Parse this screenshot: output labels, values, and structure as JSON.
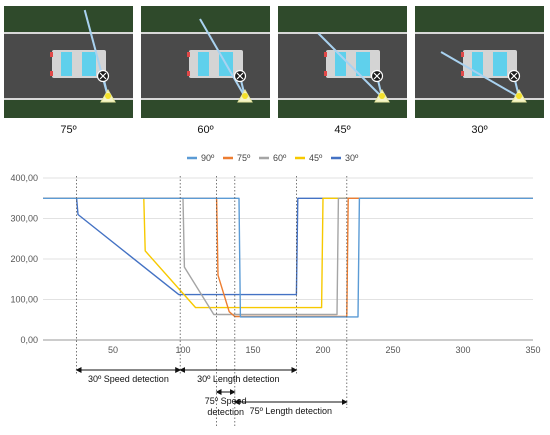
{
  "scenes": [
    {
      "label": "75º",
      "angle": 75
    },
    {
      "label": "60º",
      "angle": 60
    },
    {
      "label": "45º",
      "angle": 45
    },
    {
      "label": "30º",
      "angle": 30
    }
  ],
  "colors": {
    "grass": "#2f4a2b",
    "road": "#4a4a4a",
    "road_edge": "#d8d8d8",
    "car_body": "#d4d4d4",
    "car_glass": "#5fd0ec",
    "car_light": "#e04848",
    "beam": "#a9d2f0",
    "sensor_fill": "#f5f5c8",
    "sensor_dot": "#f3e12a"
  },
  "chart_data": {
    "type": "line",
    "xlim": [
      0,
      350
    ],
    "ylim": [
      0,
      400
    ],
    "x_ticks": [
      "50",
      "100",
      "150",
      "200",
      "250",
      "300",
      "350"
    ],
    "y_ticks": [
      "0,00",
      "100,00",
      "200,00",
      "300,00",
      "400,00"
    ],
    "legend_position": "top",
    "grid": "horizontal",
    "series": [
      {
        "name": "90º",
        "color": "#5b9bd5",
        "points": [
          [
            0,
            350
          ],
          [
            140,
            350
          ],
          [
            141,
            57
          ],
          [
            225,
            57
          ],
          [
            226,
            350
          ],
          [
            350,
            350
          ]
        ]
      },
      {
        "name": "75º",
        "color": "#ed7d31",
        "points": [
          [
            0,
            350
          ],
          [
            124,
            350
          ],
          [
            125,
            160
          ],
          [
            133,
            70
          ],
          [
            137,
            58
          ],
          [
            217,
            58
          ],
          [
            218,
            350
          ],
          [
            350,
            350
          ]
        ]
      },
      {
        "name": "60º",
        "color": "#a5a5a5",
        "points": [
          [
            0,
            350
          ],
          [
            100,
            350
          ],
          [
            101,
            180
          ],
          [
            122,
            63
          ],
          [
            210,
            63
          ],
          [
            211,
            350
          ],
          [
            350,
            350
          ]
        ]
      },
      {
        "name": "45º",
        "color": "#f7c900",
        "points": [
          [
            0,
            350
          ],
          [
            72,
            350
          ],
          [
            73,
            220
          ],
          [
            109,
            80
          ],
          [
            199,
            80
          ],
          [
            200,
            350
          ],
          [
            350,
            350
          ]
        ]
      },
      {
        "name": "30º",
        "color": "#4472c4",
        "points": [
          [
            0,
            350
          ],
          [
            24,
            350
          ],
          [
            25,
            310
          ],
          [
            97,
            112
          ],
          [
            181,
            112
          ],
          [
            182,
            350
          ],
          [
            350,
            350
          ]
        ]
      }
    ],
    "markers_x": [
      24,
      98,
      124,
      137,
      181,
      217
    ],
    "annotations": [
      {
        "text": "30º Speed detection",
        "x1": 24,
        "x2": 98,
        "row": 0
      },
      {
        "text": "30º Length detection",
        "x1": 98,
        "x2": 181,
        "row": 0
      },
      {
        "text": "75º Length detection",
        "x1": 137,
        "x2": 217,
        "row": 1
      },
      {
        "text": "75º Speed",
        "text2": "detection",
        "x1": 124,
        "x2": 137,
        "row": 2
      }
    ]
  }
}
